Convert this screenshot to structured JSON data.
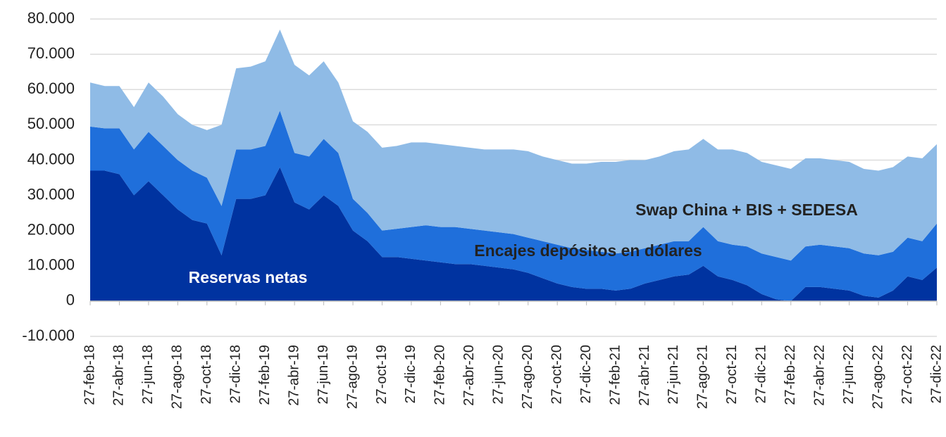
{
  "chart_data": {
    "type": "stacked_area",
    "categories": [
      "27-feb-18",
      null,
      "27-abr-18",
      null,
      "27-jun-18",
      null,
      "27-ago-18",
      null,
      "27-oct-18",
      null,
      "27-dic-18",
      null,
      "27-feb-19",
      null,
      "27-abr-19",
      null,
      "27-jun-19",
      null,
      "27-ago-19",
      null,
      "27-oct-19",
      null,
      "27-dic-19",
      null,
      "27-feb-20",
      null,
      "27-abr-20",
      null,
      "27-jun-20",
      null,
      "27-ago-20",
      null,
      "27-oct-20",
      null,
      "27-dic-20",
      null,
      "27-feb-21",
      null,
      "27-abr-21",
      null,
      "27-jun-21",
      null,
      "27-ago-21",
      null,
      "27-oct-21",
      null,
      "27-dic-21",
      null,
      "27-feb-22",
      null,
      "27-abr-22",
      null,
      "27-jun-22",
      null,
      "27-ago-22",
      null,
      "27-oct-22",
      null,
      "27-dic-22"
    ],
    "series": [
      {
        "name": "Reservas netas",
        "color": "#0033a0",
        "values": [
          37000,
          37000,
          36000,
          30000,
          34000,
          30000,
          26000,
          23000,
          22000,
          13000,
          29000,
          29000,
          30000,
          38000,
          28000,
          26000,
          30000,
          27000,
          20000,
          17000,
          12500,
          12500,
          12000,
          11500,
          11000,
          10500,
          10500,
          10000,
          9500,
          9000,
          8000,
          6500,
          5000,
          4000,
          3500,
          3500,
          3000,
          3500,
          5000,
          6000,
          7000,
          7500,
          10000,
          7000,
          6000,
          4500,
          2000,
          500,
          0,
          4000,
          4000,
          3500,
          3000,
          1500,
          1000,
          3000,
          7000,
          6000,
          9500
        ]
      },
      {
        "name": "Encajes depósitos en dólares",
        "color": "#1f6fdb",
        "values": [
          12500,
          12000,
          13000,
          13000,
          14000,
          14000,
          14000,
          14000,
          13000,
          14000,
          14000,
          14000,
          14000,
          16000,
          14000,
          15000,
          16000,
          15000,
          9000,
          8000,
          7500,
          8000,
          9000,
          10000,
          10000,
          10500,
          10000,
          10000,
          10000,
          10000,
          10000,
          10500,
          11000,
          11000,
          11000,
          10500,
          10500,
          10500,
          10000,
          10000,
          10000,
          9500,
          11000,
          10000,
          10000,
          11000,
          11500,
          12000,
          11500,
          11500,
          12000,
          12000,
          12000,
          12000,
          12000,
          11000,
          11000,
          11000,
          12500
        ]
      },
      {
        "name": "Swap China + BIS + SEDESA",
        "color": "#8fbbe6",
        "values": [
          12500,
          12000,
          12000,
          12000,
          14000,
          14000,
          13000,
          13000,
          13500,
          23000,
          23000,
          23500,
          24000,
          23000,
          25000,
          23000,
          22000,
          20000,
          22000,
          23000,
          23500,
          23500,
          24000,
          23500,
          23500,
          23000,
          23000,
          23000,
          23500,
          24000,
          24500,
          24000,
          24000,
          24000,
          24500,
          25500,
          26000,
          26000,
          25000,
          25000,
          25500,
          26000,
          25000,
          26000,
          27000,
          26500,
          26000,
          26000,
          26000,
          25000,
          24500,
          24500,
          24500,
          24000,
          24000,
          24000,
          23000,
          23500,
          22500
        ]
      }
    ],
    "ylim": [
      -10000,
      80000
    ],
    "yticks": [
      {
        "value": -10000,
        "label": "-10.000"
      },
      0,
      {
        "value": 10000,
        "label": "10.000"
      },
      {
        "value": 20000,
        "label": "20.000"
      },
      {
        "value": 30000,
        "label": "30.000"
      },
      {
        "value": 40000,
        "label": "40.000"
      },
      {
        "value": 50000,
        "label": "50.000"
      },
      {
        "value": 60000,
        "label": "60.000"
      },
      {
        "value": 70000,
        "label": "70.000"
      },
      {
        "value": 80000,
        "label": "80.000"
      }
    ],
    "grid": true
  }
}
